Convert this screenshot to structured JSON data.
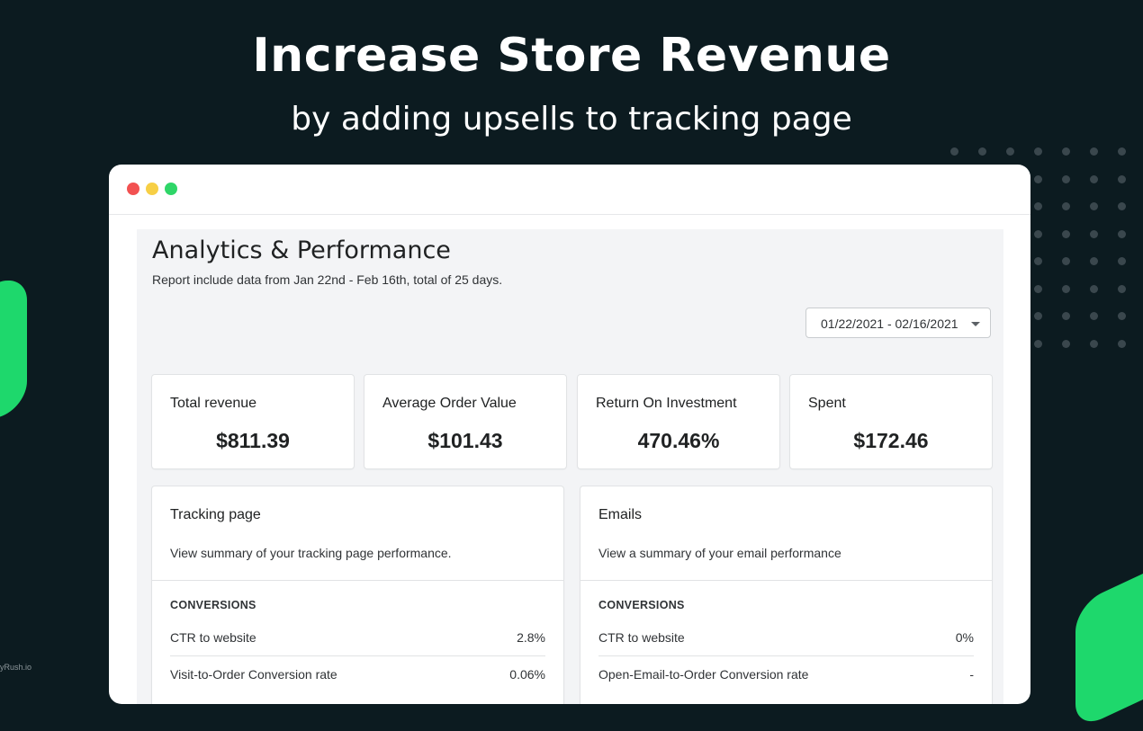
{
  "hero": {
    "title": "Increase Store Revenue",
    "subtitle": "by adding upsells to tracking page"
  },
  "watermark": "yRush.io",
  "colors": {
    "background": "#0c1b20",
    "accent_green": "#1ed86c",
    "traffic_red": "#f25151",
    "traffic_yellow": "#f7cf45",
    "traffic_green": "#2fd668"
  },
  "page": {
    "title": "Analytics & Performance",
    "description": "Report include data from Jan 22nd - Feb 16th, total of 25 days.",
    "date_range": "01/22/2021 - 02/16/2021"
  },
  "stats": [
    {
      "label": "Total revenue",
      "value": "$811.39"
    },
    {
      "label": "Average Order Value",
      "value": "$101.43"
    },
    {
      "label": "Return On Investment",
      "value": "470.46%"
    },
    {
      "label": "Spent",
      "value": "$172.46"
    }
  ],
  "panels": [
    {
      "title": "Tracking page",
      "description": "View summary of your tracking page performance.",
      "section": "CONVERSIONS",
      "rows": [
        {
          "label": "CTR to website",
          "value": "2.8%"
        },
        {
          "label": "Visit-to-Order Conversion rate",
          "value": "0.06%"
        }
      ]
    },
    {
      "title": "Emails",
      "description": "View a summary of your email performance",
      "section": "CONVERSIONS",
      "rows": [
        {
          "label": "CTR to website",
          "value": "0%"
        },
        {
          "label": "Open-Email-to-Order Conversion rate",
          "value": "-"
        }
      ]
    }
  ]
}
